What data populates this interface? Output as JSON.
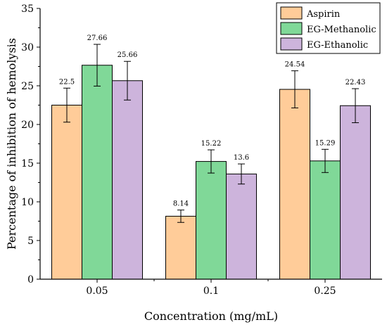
{
  "chart_data": {
    "type": "bar",
    "title": "",
    "xlabel": "Concentration (mg/mL)",
    "ylabel": "Percentage of inhibition of hemolysis",
    "categories": [
      "0.05",
      "0.1",
      "0.25"
    ],
    "ylim": [
      0,
      35
    ],
    "yticks": [
      "0",
      "5",
      "10",
      "15",
      "20",
      "25",
      "30",
      "35"
    ],
    "grid": false,
    "legend_position": "top-right",
    "series": [
      {
        "name": "Aspirin",
        "color": "#FFCC99",
        "values": [
          22.5,
          8.14,
          24.54
        ],
        "labels": [
          "22.5",
          "8.14",
          "24.54"
        ],
        "errors": [
          2.2,
          0.8,
          2.4
        ]
      },
      {
        "name": "EG-Methanolic",
        "color": "#80D898",
        "values": [
          27.66,
          15.22,
          15.29
        ],
        "labels": [
          "27.66",
          "15.22",
          "15.29"
        ],
        "errors": [
          2.7,
          1.5,
          1.5
        ]
      },
      {
        "name": "EG-Ethanolic",
        "color": "#CDB4DC",
        "values": [
          25.66,
          13.6,
          22.43
        ],
        "labels": [
          "25.66",
          "13.6",
          "22.43"
        ],
        "errors": [
          2.5,
          1.3,
          2.2
        ]
      }
    ]
  }
}
